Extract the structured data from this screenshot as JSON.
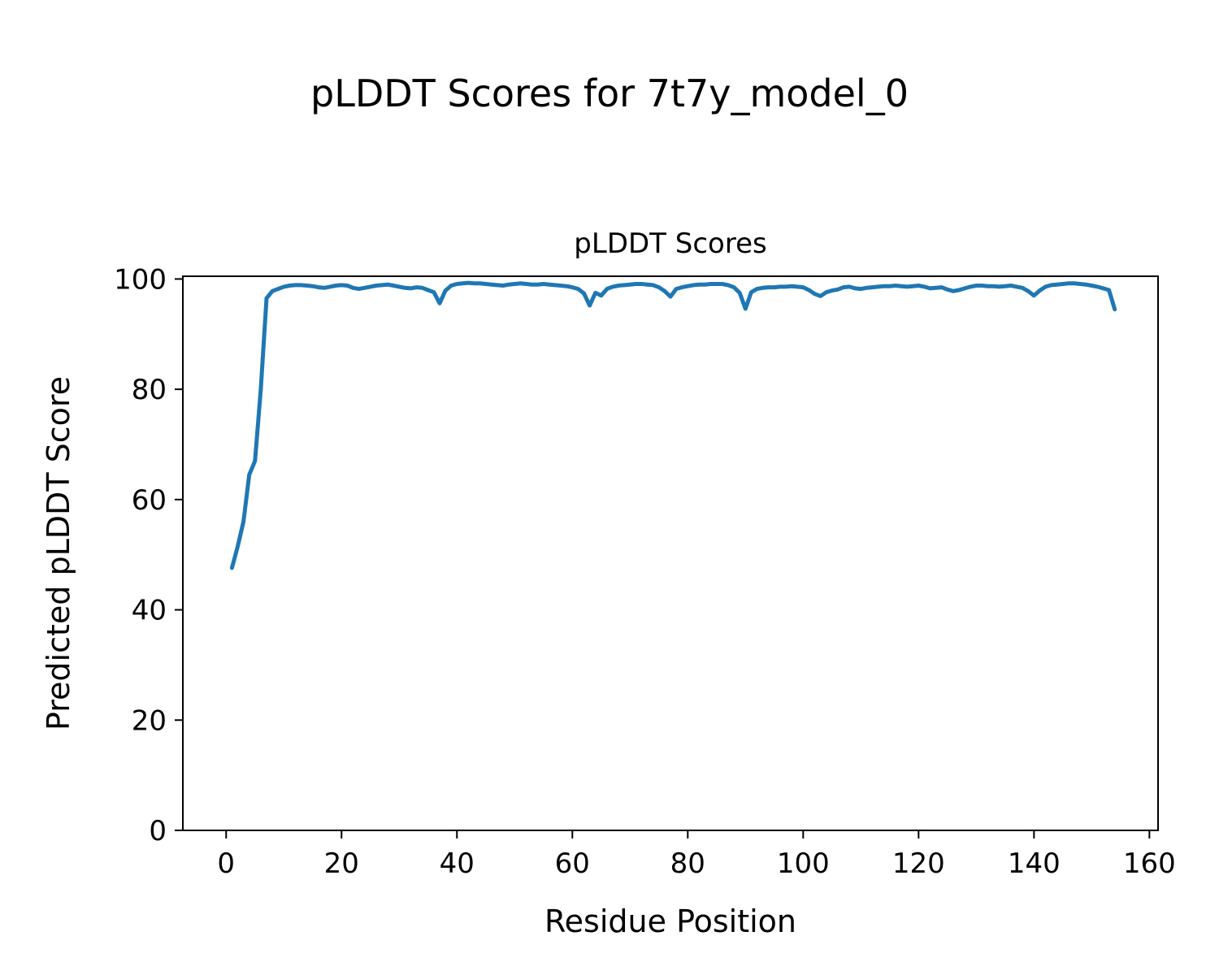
{
  "chart_data": {
    "type": "line",
    "suptitle": "pLDDT Scores for 7t7y_model_0",
    "title": "pLDDT Scores",
    "xlabel": "Residue Position",
    "ylabel": "Predicted pLDDT Score",
    "xlim": [
      -7.5,
      161.5
    ],
    "ylim": [
      0,
      100.5
    ],
    "xticks": [
      0,
      20,
      40,
      60,
      80,
      100,
      120,
      140,
      160
    ],
    "yticks": [
      0,
      20,
      40,
      60,
      80,
      100
    ],
    "grid": false,
    "legend": null,
    "line_color": "#1f77b4",
    "line_width": 5,
    "spine_color": "#000000",
    "series": [
      {
        "name": "pLDDT",
        "x": [
          1,
          2,
          3,
          4,
          5,
          6,
          7,
          8,
          9,
          10,
          11,
          12,
          13,
          14,
          15,
          16,
          17,
          18,
          19,
          20,
          21,
          22,
          23,
          24,
          25,
          26,
          27,
          28,
          29,
          30,
          31,
          32,
          33,
          34,
          35,
          36,
          37,
          38,
          39,
          40,
          41,
          42,
          43,
          44,
          45,
          46,
          47,
          48,
          49,
          50,
          51,
          52,
          53,
          54,
          55,
          56,
          57,
          58,
          59,
          60,
          61,
          62,
          63,
          64,
          65,
          66,
          67,
          68,
          69,
          70,
          71,
          72,
          73,
          74,
          75,
          76,
          77,
          78,
          79,
          80,
          81,
          82,
          83,
          84,
          85,
          86,
          87,
          88,
          89,
          90,
          91,
          92,
          93,
          94,
          95,
          96,
          97,
          98,
          99,
          100,
          101,
          102,
          103,
          104,
          105,
          106,
          107,
          108,
          109,
          110,
          111,
          112,
          113,
          114,
          115,
          116,
          117,
          118,
          119,
          120,
          121,
          122,
          123,
          124,
          125,
          126,
          127,
          128,
          129,
          130,
          131,
          132,
          133,
          134,
          135,
          136,
          137,
          138,
          139,
          140,
          141,
          142,
          143,
          144,
          145,
          146,
          147,
          148,
          149,
          150,
          151,
          152,
          153,
          154
        ],
        "y": [
          47.6,
          51.5,
          56,
          64.5,
          67,
          80,
          96.5,
          97.8,
          98.2,
          98.6,
          98.8,
          98.9,
          98.9,
          98.8,
          98.7,
          98.5,
          98.4,
          98.6,
          98.8,
          98.9,
          98.8,
          98.4,
          98.2,
          98.4,
          98.6,
          98.8,
          98.9,
          99.0,
          98.8,
          98.6,
          98.4,
          98.3,
          98.5,
          98.4,
          98.0,
          97.6,
          95.6,
          97.9,
          98.8,
          99.1,
          99.2,
          99.3,
          99.2,
          99.2,
          99.1,
          99.0,
          98.9,
          98.8,
          99.0,
          99.1,
          99.2,
          99.1,
          99.0,
          99.0,
          99.1,
          99.0,
          98.9,
          98.8,
          98.7,
          98.5,
          98.2,
          97.4,
          95.2,
          97.5,
          97.0,
          98.2,
          98.6,
          98.8,
          98.9,
          99.0,
          99.1,
          99.1,
          99.0,
          98.9,
          98.5,
          97.8,
          96.8,
          98.2,
          98.5,
          98.7,
          98.9,
          99.0,
          99.0,
          99.1,
          99.1,
          99.1,
          98.9,
          98.5,
          97.5,
          94.6,
          97.6,
          98.2,
          98.4,
          98.5,
          98.5,
          98.6,
          98.6,
          98.7,
          98.6,
          98.5,
          98.0,
          97.3,
          96.9,
          97.6,
          97.9,
          98.1,
          98.5,
          98.6,
          98.3,
          98.2,
          98.4,
          98.5,
          98.6,
          98.7,
          98.7,
          98.8,
          98.7,
          98.6,
          98.7,
          98.8,
          98.6,
          98.3,
          98.4,
          98.5,
          98.1,
          97.8,
          98.0,
          98.3,
          98.6,
          98.8,
          98.8,
          98.7,
          98.7,
          98.6,
          98.7,
          98.8,
          98.6,
          98.4,
          97.8,
          97.0,
          97.9,
          98.6,
          98.9,
          99.0,
          99.1,
          99.2,
          99.2,
          99.1,
          99.0,
          98.8,
          98.6,
          98.3,
          98.0,
          94.5
        ]
      }
    ]
  }
}
